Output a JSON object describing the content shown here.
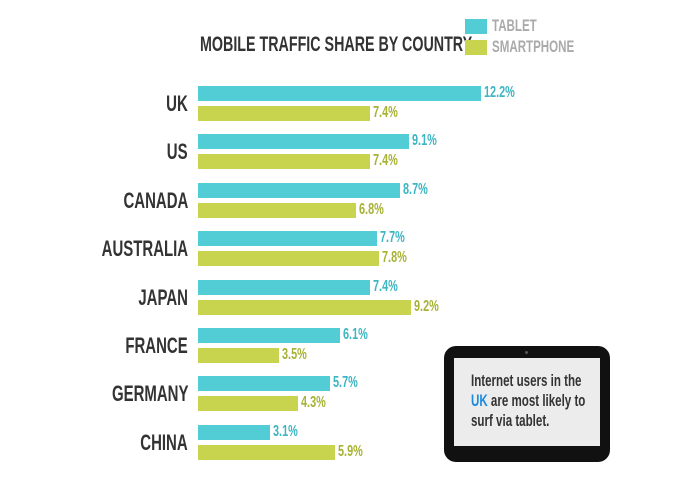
{
  "chart_data": {
    "type": "bar",
    "orientation": "horizontal",
    "title": "MOBILE TRAFFIC SHARE BY COUNTRY",
    "categories": [
      "UK",
      "US",
      "CANADA",
      "AUSTRALIA",
      "JAPAN",
      "FRANCE",
      "GERMANY",
      "CHINA"
    ],
    "series": [
      {
        "name": "TABLET",
        "color": "#52cdd6",
        "label_color": "#3bb6c2",
        "values": [
          12.2,
          9.1,
          8.7,
          7.7,
          7.4,
          6.1,
          5.7,
          3.1
        ],
        "labels": [
          "12.2%",
          "9.1%",
          "8.7%",
          "7.7%",
          "7.4%",
          "6.1%",
          "5.7%",
          "3.1%"
        ]
      },
      {
        "name": "SMARTPHONE",
        "color": "#c9d44e",
        "label_color": "#a7b234",
        "values": [
          7.4,
          7.4,
          6.8,
          7.8,
          9.2,
          3.5,
          4.3,
          5.9
        ],
        "labels": [
          "7.4%",
          "7.4%",
          "6.8%",
          "7.8%",
          "9.2%",
          "3.5%",
          "4.3%",
          "5.9%"
        ]
      }
    ],
    "legend_position": "top-right",
    "grid": false
  },
  "callout": {
    "line1": "Internet users in the",
    "highlight": "UK",
    "line2_rest": " are most likely to",
    "line3": "surf via tablet."
  }
}
